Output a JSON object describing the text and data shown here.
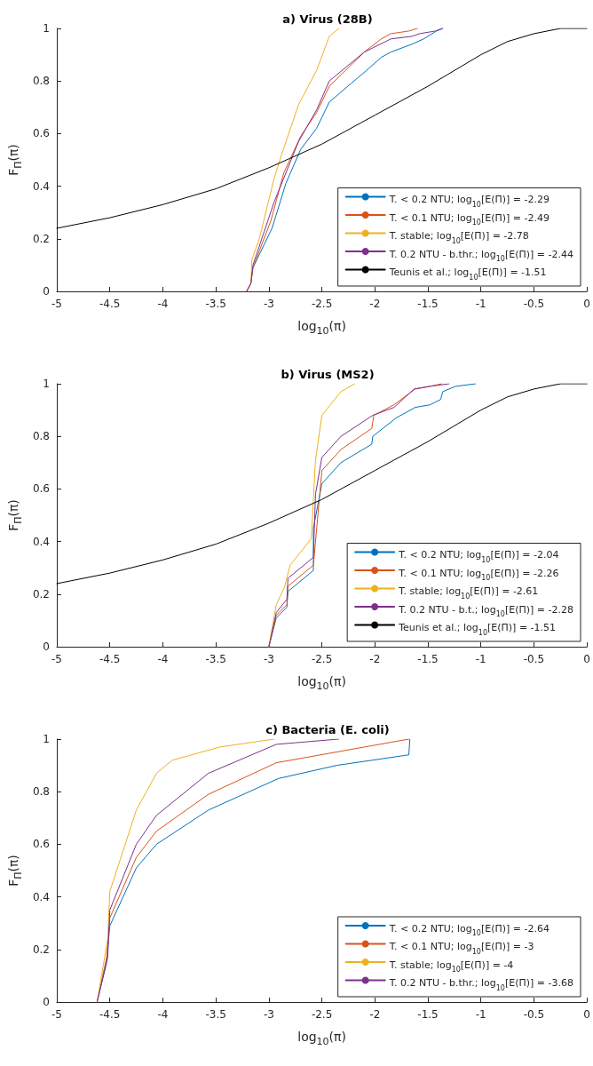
{
  "chart_data": [
    {
      "type": "line",
      "title": "a) Virus (28B)",
      "xlabel": "log$_{10}$(π)",
      "ylabel": "F$_{Π}$(π)",
      "xlim": [
        -5,
        0
      ],
      "ylim": [
        0,
        1
      ],
      "xticks": [
        -5,
        -4.5,
        -4,
        -3.5,
        -3,
        -2.5,
        -2,
        -1.5,
        -1,
        -0.5,
        0
      ],
      "yticks": [
        0,
        0.2,
        0.4,
        0.6,
        0.8,
        1
      ],
      "legend": "bottom right",
      "marker": "none",
      "line_style": "solid",
      "series": [
        {
          "name": "T. < 0.2 NTU; log$_{10}$[E(Π)] = -2.29",
          "color": "#0072bd",
          "x": [
            -3.21,
            -3.17,
            -3.15,
            -2.97,
            -2.84,
            -2.7,
            -2.55,
            -2.43,
            -2.08,
            -1.94,
            -1.85,
            -1.65,
            -1.54,
            -1.42,
            -1.36
          ],
          "values": [
            0,
            0.03,
            0.09,
            0.24,
            0.41,
            0.54,
            0.62,
            0.72,
            0.84,
            0.89,
            0.91,
            0.94,
            0.96,
            0.99,
            1
          ]
        },
        {
          "name": "T. < 0.1 NTU; log$_{10}$[E(Π)] = -2.49",
          "color": "#d95319",
          "x": [
            -3.21,
            -3.17,
            -3.15,
            -2.98,
            -2.86,
            -2.7,
            -2.55,
            -2.43,
            -2.1,
            -1.94,
            -1.85,
            -1.68,
            -1.6
          ],
          "values": [
            0,
            0.03,
            0.09,
            0.27,
            0.45,
            0.59,
            0.68,
            0.78,
            0.91,
            0.96,
            0.98,
            0.99,
            1
          ]
        },
        {
          "name": "T. stable; log$_{10}$[E(Π)] = -2.78",
          "color": "#edb120",
          "x": [
            -3.21,
            -3.17,
            -3.16,
            -3.09,
            -2.95,
            -2.88,
            -2.72,
            -2.55,
            -2.43,
            -2.34
          ],
          "values": [
            0,
            0.03,
            0.12,
            0.2,
            0.43,
            0.52,
            0.71,
            0.84,
            0.97,
            1
          ]
        },
        {
          "name": "T. 0.2 NTU - b.thr.; log$_{10}$[E(Π)] = -2.44",
          "color": "#7e2f8e",
          "x": [
            -3.21,
            -3.17,
            -3.15,
            -2.95,
            -2.72,
            -2.55,
            -2.43,
            -2.1,
            -1.85,
            -1.65,
            -1.58,
            -1.43,
            -1.36
          ],
          "values": [
            0,
            0.03,
            0.1,
            0.34,
            0.57,
            0.69,
            0.8,
            0.91,
            0.96,
            0.97,
            0.98,
            0.99,
            1
          ]
        },
        {
          "name": "Teunis et al.; log$_{10}$[E(Π)] = -1.51",
          "color": "#000000",
          "x": [
            -5,
            -4.5,
            -4,
            -3.5,
            -3,
            -2.5,
            -2,
            -1.5,
            -1,
            -0.75,
            -0.5,
            -0.25,
            0
          ],
          "values": [
            0.24,
            0.28,
            0.33,
            0.39,
            0.47,
            0.56,
            0.67,
            0.78,
            0.9,
            0.95,
            0.98,
            1,
            1
          ]
        }
      ]
    },
    {
      "type": "line",
      "title": "b) Virus (MS2)",
      "xlabel": "log$_{10}$(π)",
      "ylabel": "F$_{Π}$(π)",
      "xlim": [
        -5,
        0
      ],
      "ylim": [
        0,
        1
      ],
      "xticks": [
        -5,
        -4.5,
        -4,
        -3.5,
        -3,
        -2.5,
        -2,
        -1.5,
        -1,
        -0.5,
        0
      ],
      "yticks": [
        0,
        0.2,
        0.4,
        0.6,
        0.8,
        1
      ],
      "legend": "bottom right",
      "marker": "none",
      "line_style": "solid",
      "series": [
        {
          "name": "T. < 0.2 NTU; log$_{10}$[E(Π)] = -2.04",
          "color": "#0072bd",
          "x": [
            -3.0,
            -2.93,
            -2.83,
            -2.82,
            -2.58,
            -2.58,
            -2.5,
            -2.32,
            -2.03,
            -2.02,
            -1.8,
            -1.62,
            -1.48,
            -1.38,
            -1.36,
            -1.24,
            -1.05
          ],
          "values": [
            0,
            0.11,
            0.15,
            0.21,
            0.29,
            0.45,
            0.62,
            0.7,
            0.77,
            0.8,
            0.87,
            0.91,
            0.92,
            0.94,
            0.97,
            0.99,
            1
          ]
        },
        {
          "name": "T. < 0.1 NTU; log$_{10}$[E(Π)] = -2.26",
          "color": "#d95319",
          "x": [
            -3.0,
            -2.93,
            -2.83,
            -2.82,
            -2.58,
            -2.5,
            -2.32,
            -2.03,
            -2.01,
            -1.82,
            -1.62,
            -1.48,
            -1.37
          ],
          "values": [
            0,
            0.12,
            0.16,
            0.23,
            0.31,
            0.67,
            0.75,
            0.83,
            0.88,
            0.92,
            0.98,
            0.99,
            1
          ]
        },
        {
          "name": "T. stable; log$_{10}$[E(Π)] = -2.61",
          "color": "#edb120",
          "x": [
            -3.0,
            -2.93,
            -2.85,
            -2.8,
            -2.6,
            -2.56,
            -2.5,
            -2.32,
            -2.19
          ],
          "values": [
            0,
            0.16,
            0.23,
            0.31,
            0.41,
            0.71,
            0.88,
            0.97,
            1
          ]
        },
        {
          "name": "T. 0.2 NTU - b.t.; log$_{10}$[E(Π)] = -2.28",
          "color": "#7e2f8e",
          "x": [
            -3.0,
            -2.93,
            -2.83,
            -2.82,
            -2.58,
            -2.56,
            -2.5,
            -2.32,
            -2.02,
            -1.82,
            -1.63,
            -1.49,
            -1.3
          ],
          "values": [
            0,
            0.13,
            0.18,
            0.26,
            0.34,
            0.58,
            0.72,
            0.8,
            0.88,
            0.91,
            0.98,
            0.99,
            1
          ]
        },
        {
          "name": "Teunis et al.; log$_{10}$[E(Π)] = -1.51",
          "color": "#000000",
          "x": [
            -5,
            -4.5,
            -4,
            -3.5,
            -3,
            -2.5,
            -2,
            -1.5,
            -1,
            -0.75,
            -0.5,
            -0.25,
            0
          ],
          "values": [
            0.24,
            0.28,
            0.33,
            0.39,
            0.47,
            0.56,
            0.67,
            0.78,
            0.9,
            0.95,
            0.98,
            1,
            1
          ]
        }
      ]
    },
    {
      "type": "line",
      "title": "c) Bacteria (E. coli)",
      "xlabel": "log$_{10}$(π)",
      "ylabel": "F$_{Π}$(π)",
      "xlim": [
        -5,
        0
      ],
      "ylim": [
        0,
        1
      ],
      "xticks": [
        -5,
        -4.5,
        -4,
        -3.5,
        -3,
        -2.5,
        -2,
        -1.5,
        -1,
        -0.5,
        0
      ],
      "yticks": [
        0,
        0.2,
        0.4,
        0.6,
        0.8,
        1
      ],
      "legend": "bottom right",
      "marker": "none",
      "line_style": "solid",
      "series": [
        {
          "name": "T. < 0.2 NTU; log$_{10}$[E(Π)] = -2.64",
          "color": "#0072bd",
          "x": [
            -4.62,
            -4.53,
            -4.5,
            -4.25,
            -4.06,
            -3.57,
            -2.91,
            -2.36,
            -1.68,
            -1.67
          ],
          "values": [
            0,
            0.15,
            0.29,
            0.51,
            0.6,
            0.73,
            0.85,
            0.9,
            0.94,
            1
          ]
        },
        {
          "name": "T. < 0.1 NTU; log$_{10}$[E(Π)] = -3",
          "color": "#d95319",
          "x": [
            -4.62,
            -4.53,
            -4.5,
            -4.25,
            -4.06,
            -3.57,
            -2.93,
            -1.68
          ],
          "values": [
            0,
            0.17,
            0.32,
            0.55,
            0.65,
            0.79,
            0.91,
            1
          ]
        },
        {
          "name": "T. stable; log$_{10}$[E(Π)] = -4",
          "color": "#edb120",
          "x": [
            -4.62,
            -4.52,
            -4.5,
            -4.25,
            -4.06,
            -3.91,
            -3.46,
            -2.95
          ],
          "values": [
            0,
            0.24,
            0.42,
            0.73,
            0.87,
            0.92,
            0.97,
            1
          ]
        },
        {
          "name": "T. 0.2 NTU - b.thr.; log$_{10}$[E(Π)] = -3.68",
          "color": "#7e2f8e",
          "x": [
            -4.62,
            -4.52,
            -4.5,
            -4.25,
            -4.06,
            -3.57,
            -2.93,
            -2.34
          ],
          "values": [
            0,
            0.17,
            0.35,
            0.6,
            0.71,
            0.87,
            0.98,
            1
          ]
        }
      ]
    }
  ]
}
